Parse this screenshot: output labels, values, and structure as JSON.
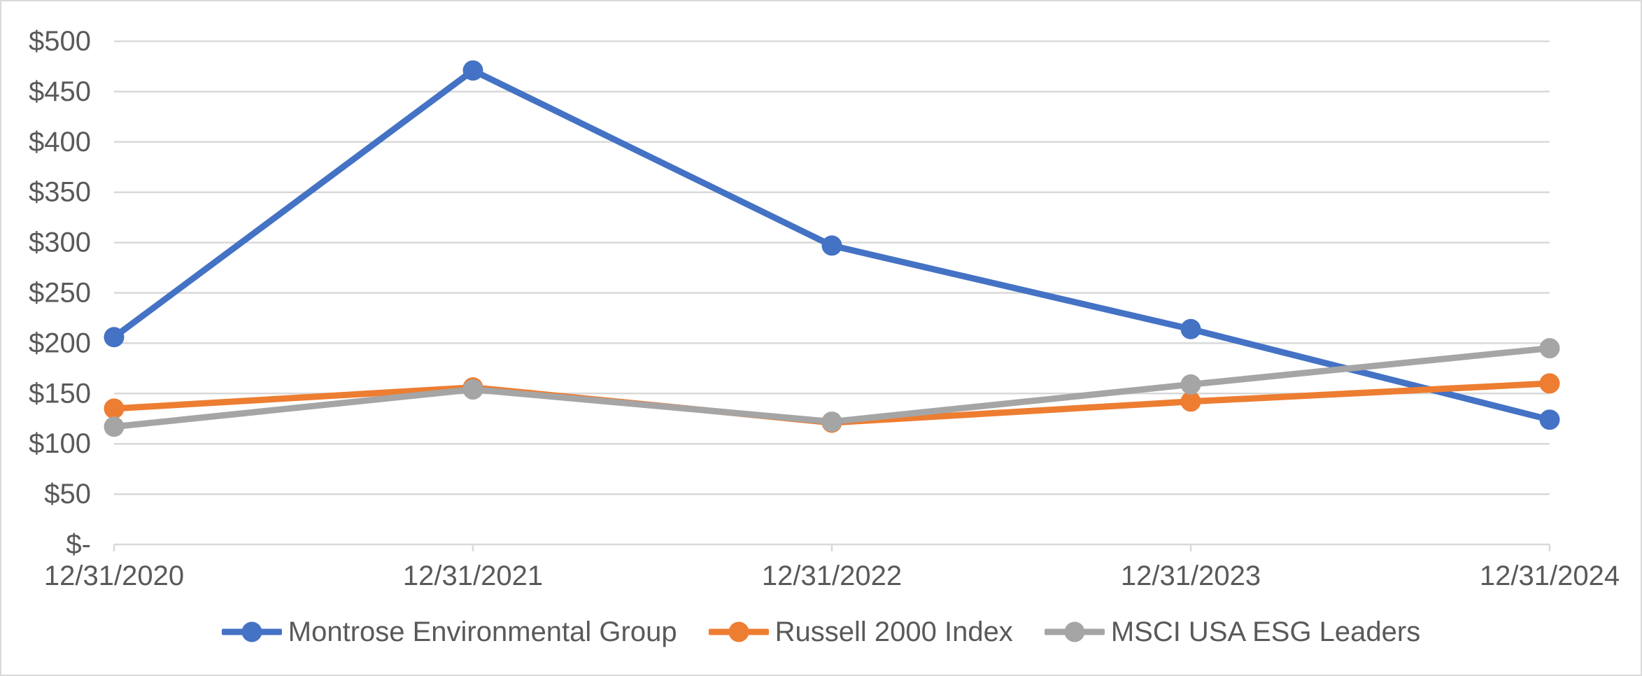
{
  "chart_data": {
    "type": "line",
    "title": "",
    "xlabel": "",
    "ylabel": "",
    "categories": [
      "12/31/2020",
      "12/31/2021",
      "12/31/2022",
      "12/31/2023",
      "12/31/2024"
    ],
    "series": [
      {
        "name": "Montrose Environmental Group",
        "color": "#4472C4",
        "values": [
          206,
          471,
          297,
          214,
          124
        ]
      },
      {
        "name": "Russell 2000 Index",
        "color": "#ED7D31",
        "values": [
          135,
          156,
          121,
          142,
          160
        ]
      },
      {
        "name": "MSCI USA ESG Leaders",
        "color": "#A5A5A5",
        "values": [
          117,
          154,
          122,
          159,
          195
        ]
      }
    ],
    "ylim": [
      0,
      500
    ],
    "y_tick_step": 50,
    "y_tick_labels": [
      "$-",
      "$50",
      "$100",
      "$150",
      "$200",
      "$250",
      "$300",
      "$350",
      "$400",
      "$450",
      "$500"
    ],
    "grid": true,
    "marker": "circle",
    "legend_position": "bottom",
    "colors": {
      "axis_text": "#595959",
      "gridline": "#D9D9D9",
      "axis_line": "#D9D9D9",
      "border": "#D9D9D9",
      "background": "#FFFFFF"
    }
  }
}
